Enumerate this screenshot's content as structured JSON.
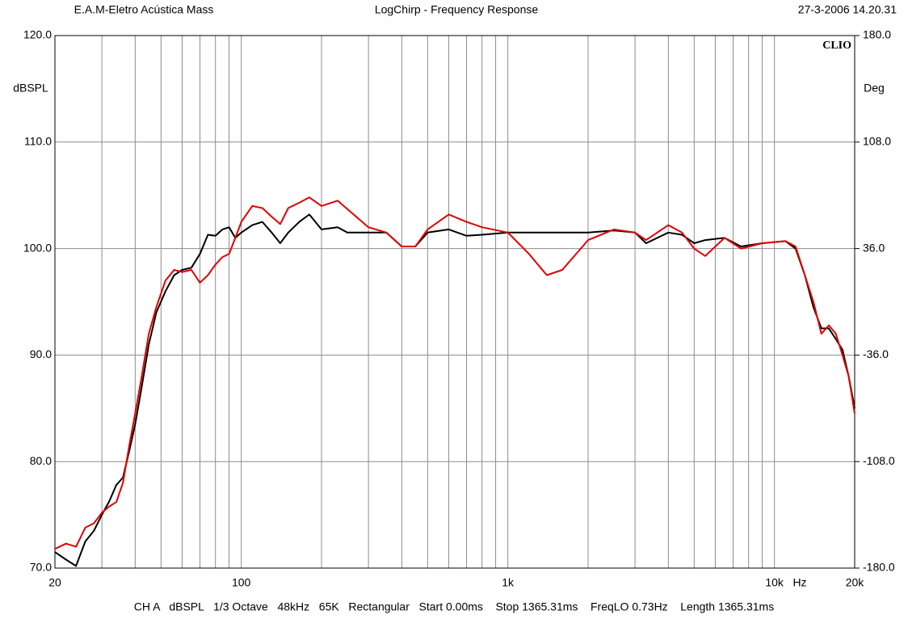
{
  "chart_data": {
    "type": "line",
    "header_left": "E.A.M-Eletro Acústica Mass",
    "title": "LogChirp - Frequency Response",
    "header_right": "27-3-2006 14.20.31",
    "ylabel": "dBSPL",
    "y2label": "Deg",
    "xunit": "Hz",
    "logo": "CLIO",
    "footer": "CH A   dBSPL   1/3 Octave   48kHz   65K   Rectangular   Start 0.00ms    Stop 1365.31ms    FreqLO 0.73Hz    Length 1365.31ms",
    "xscale": "log",
    "grid": true,
    "xlim": [
      20,
      20000
    ],
    "ylim": [
      70,
      120
    ],
    "y2lim": [
      -180,
      180
    ],
    "xticks": [
      20,
      100,
      {
        "value": 1000,
        "label": "1k"
      },
      {
        "value": 10000,
        "label": "10k"
      },
      {
        "value": 20000,
        "label": "20k"
      }
    ],
    "xminor": [
      30,
      40,
      50,
      60,
      70,
      80,
      90,
      200,
      300,
      400,
      500,
      600,
      700,
      800,
      900,
      2000,
      3000,
      4000,
      5000,
      6000,
      7000,
      8000,
      9000
    ],
    "yticks": [
      {
        "value": 70,
        "label": "70.0"
      },
      {
        "value": 80,
        "label": "80.0"
      },
      {
        "value": 90,
        "label": "90.0"
      },
      {
        "value": 100,
        "label": "100.0"
      },
      {
        "value": 110,
        "label": "110.0"
      },
      {
        "value": 120,
        "label": "120.0"
      }
    ],
    "y2ticks": [
      {
        "value": -180,
        "label": "-180.0"
      },
      {
        "value": -108,
        "label": "-108.0"
      },
      {
        "value": -36,
        "label": "-36.0"
      },
      {
        "value": 36,
        "label": "36.0"
      },
      {
        "value": 108,
        "label": "108.0"
      },
      {
        "value": 180,
        "label": "180.0"
      }
    ],
    "x": [
      20,
      22,
      24,
      26,
      28,
      30,
      32,
      34,
      36,
      38,
      40,
      42,
      45,
      48,
      52,
      56,
      60,
      65,
      70,
      75,
      80,
      85,
      90,
      95,
      100,
      110,
      120,
      130,
      140,
      150,
      165,
      180,
      200,
      230,
      250,
      300,
      350,
      400,
      450,
      500,
      600,
      700,
      800,
      1000,
      1200,
      1400,
      1600,
      2000,
      2500,
      3000,
      3300,
      4000,
      4500,
      5000,
      5500,
      6500,
      7500,
      9000,
      11000,
      12000,
      13000,
      14000,
      15000,
      16000,
      17000,
      18000,
      19000,
      20000
    ],
    "series": [
      {
        "color": "#000000",
        "values": [
          71.5,
          70.8,
          70.2,
          72.5,
          73.5,
          75,
          76.3,
          77.8,
          78.5,
          81,
          83.5,
          86.5,
          91,
          94,
          96,
          97.5,
          98,
          98.2,
          99.5,
          101.3,
          101.2,
          101.8,
          102,
          101,
          101.5,
          102.2,
          102.5,
          101.5,
          100.5,
          101.5,
          102.5,
          103.2,
          101.8,
          102,
          101.5,
          101.5,
          101.5,
          100.2,
          100.2,
          101.5,
          101.8,
          101.2,
          101.3,
          101.5,
          101.5,
          101.5,
          101.5,
          101.5,
          101.7,
          101.5,
          100.5,
          101.5,
          101.3,
          100.5,
          100.8,
          101,
          100.2,
          100.5,
          100.7,
          100,
          97.5,
          94.5,
          92.5,
          92.5,
          91.5,
          90.5,
          88,
          85
        ]
      },
      {
        "color": "#e00000",
        "values": [
          71.8,
          72.3,
          72,
          73.8,
          74.2,
          75.2,
          75.8,
          76.2,
          78,
          81.5,
          84.5,
          87.5,
          92,
          94.5,
          97,
          98,
          97.8,
          98,
          96.8,
          97.5,
          98.5,
          99.2,
          99.5,
          101,
          102.5,
          104,
          103.8,
          103,
          102.3,
          103.8,
          104.3,
          104.8,
          104,
          104.5,
          103.7,
          102,
          101.5,
          100.2,
          100.2,
          101.8,
          103.2,
          102.5,
          102,
          101.5,
          99.5,
          97.5,
          98,
          100.8,
          101.8,
          101.5,
          100.8,
          102.2,
          101.5,
          100,
          99.3,
          101,
          100,
          100.5,
          100.7,
          100.2,
          97.5,
          95,
          92,
          92.8,
          92,
          90,
          88,
          84.5
        ]
      }
    ]
  }
}
